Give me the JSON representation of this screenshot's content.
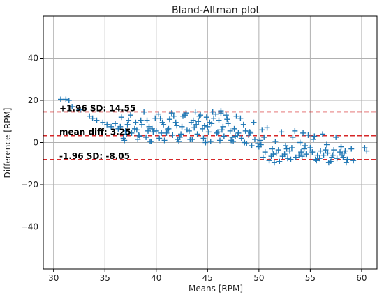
{
  "chart_data": {
    "type": "scatter",
    "title": "Bland-Altman plot",
    "xlabel": "Means [RPM]",
    "ylabel": "Difference [RPM]",
    "xlim": [
      29,
      61.5
    ],
    "ylim": [
      -60,
      60
    ],
    "x_ticks": [
      30,
      35,
      40,
      45,
      50,
      55,
      60
    ],
    "y_ticks": [
      -40,
      -20,
      0,
      20,
      40
    ],
    "grid": true,
    "marker": "+",
    "colors": {
      "points": "#1f77b4",
      "lines": "#d62728"
    },
    "reference_lines": [
      {
        "value": 14.55,
        "label": "+1.96 SD: 14.55"
      },
      {
        "value": 3.25,
        "label": "mean diff: 3.25"
      },
      {
        "value": -8.05,
        "label": "-1.96 SD: -8.05"
      }
    ],
    "points": {
      "x": [
        30.7,
        31.2,
        31.5,
        31.8,
        32.6,
        33.5,
        33.8,
        34.2,
        34.8,
        35.2,
        35.6,
        36.0,
        36.3,
        36.6,
        37.0,
        37.3,
        37.6,
        38.0,
        38.3,
        38.6,
        39.0,
        39.3,
        39.6,
        40.0,
        40.3,
        40.6,
        41.0,
        41.3,
        41.6,
        42.0,
        42.3,
        42.6,
        43.0,
        43.3,
        43.6,
        44.0,
        44.3,
        44.6,
        45.0,
        45.3,
        45.6,
        46.0,
        46.3,
        46.6,
        47.0,
        47.3,
        47.6,
        48.0,
        48.3,
        48.6,
        49.0,
        49.3,
        49.6,
        50.0,
        50.3,
        50.6,
        51.0,
        51.3,
        51.6,
        52.0,
        52.3,
        52.6,
        53.0,
        53.3,
        53.6,
        54.0,
        54.3,
        54.6,
        55.0,
        55.3,
        55.6,
        56.0,
        56.3,
        56.6,
        57.0,
        57.3,
        57.6,
        58.0,
        58.3,
        58.6,
        59.0,
        60.3,
        60.5,
        36.8,
        37.5,
        38.2,
        38.8,
        39.5,
        40.2,
        40.8,
        41.5,
        42.2,
        42.8,
        43.5,
        44.2,
        44.8,
        45.5,
        46.2,
        46.8,
        47.5,
        48.2,
        48.8,
        49.5,
        50.2,
        50.8,
        51.5,
        52.2,
        52.8,
        53.5,
        54.2,
        54.8,
        55.5,
        56.2,
        56.8,
        57.5,
        58.2,
        36.5,
        37.2,
        37.9,
        38.5,
        39.2,
        39.9,
        40.5,
        41.2,
        41.9,
        42.5,
        43.2,
        43.9,
        44.5,
        45.2,
        45.9,
        46.5,
        47.2,
        47.9,
        48.5,
        49.2,
        49.9,
        50.5,
        51.2,
        51.9,
        52.5,
        53.2,
        53.9,
        54.5,
        55.2,
        55.9,
        56.5,
        57.2,
        57.9,
        58.5,
        37.1,
        38.4,
        39.7,
        41.1,
        42.4,
        43.7,
        45.1,
        46.4,
        47.7,
        49.1,
        50.4,
        51.7,
        53.1,
        54.4,
        55.7,
        57.1,
        58.4,
        59.2,
        36.9,
        38.1,
        39.4,
        40.7,
        42.1,
        43.4,
        44.7,
        46.1,
        47.4,
        48.7,
        50.1,
        51.4,
        52.7,
        54.1,
        55.4,
        56.7,
        58.1,
        43.8,
        44.9,
        45.8,
        46.9,
        47.8,
        46.3,
        45.4,
        44.1,
        42.9,
        41.7,
        40.4,
        39.1
      ],
      "y": [
        20.5,
        20.5,
        20.0,
        17.0,
        15.5,
        12.5,
        11.5,
        10.5,
        9.5,
        8.5,
        7.5,
        9.0,
        6.5,
        12.0,
        5.5,
        10.5,
        4.5,
        9.5,
        3.5,
        8.5,
        2.5,
        7.5,
        6.5,
        5.5,
        2.0,
        9.5,
        4.5,
        11.0,
        3.5,
        8.0,
        2.5,
        12.5,
        6.0,
        1.5,
        10.5,
        4.0,
        13.0,
        2.0,
        7.5,
        0.5,
        11.5,
        5.0,
        14.0,
        3.0,
        9.0,
        1.0,
        6.5,
        4.5,
        2.0,
        0.0,
        3.5,
        -1.5,
        1.5,
        -2.0,
        6.0,
        -4.5,
        -8.5,
        -3.0,
        0.5,
        -9.0,
        -6.5,
        -1.5,
        -4.0,
        2.5,
        -7.0,
        0.0,
        4.5,
        -5.5,
        -2.5,
        1.5,
        -8.5,
        -4.0,
        -6.0,
        -1.0,
        -9.0,
        -3.5,
        -7.5,
        -2.0,
        -5.0,
        -8.0,
        -3.0,
        -2.5,
        -4.0,
        2.0,
        13.0,
        1.5,
        14.5,
        0.5,
        13.5,
        1.0,
        14.0,
        0.5,
        13.0,
        1.5,
        12.5,
        0.0,
        14.5,
        1.0,
        13.0,
        0.5,
        11.5,
        -0.5,
        9.5,
        -1.0,
        7.0,
        -9.5,
        5.0,
        -7.5,
        5.5,
        -6.5,
        3.5,
        -8.0,
        4.0,
        -9.5,
        2.5,
        -7.0,
        7.5,
        8.5,
        6.5,
        10.5,
        5.5,
        11.5,
        4.5,
        6.5,
        9.5,
        7.5,
        5.5,
        8.5,
        6.5,
        9.5,
        4.5,
        7.5,
        5.5,
        3.5,
        8.5,
        4.5,
        -0.5,
        2.5,
        -6.5,
        -3.5,
        -5.5,
        -2.5,
        -6.0,
        -1.5,
        -4.5,
        -7.5,
        -3.5,
        -6.0,
        -4.5,
        -9.5,
        4.0,
        3.0,
        5.0,
        6.0,
        4.0,
        7.0,
        5.0,
        6.0,
        3.0,
        5.0,
        -7.0,
        -5.0,
        -8.0,
        -3.0,
        -6.0,
        -7.0,
        -4.0,
        -8.5,
        1.0,
        6.0,
        0.5,
        8.5,
        1.5,
        9.5,
        8.0,
        10.5,
        2.5,
        5.5,
        1.0,
        -5.5,
        -3.0,
        -4.5,
        3.0,
        -5.0,
        -6.0,
        14.5,
        12.0,
        13.5,
        11.0,
        12.5,
        15.0,
        9.0,
        10.0,
        14.0,
        12.5,
        11.5,
        10.5
      ]
    }
  }
}
